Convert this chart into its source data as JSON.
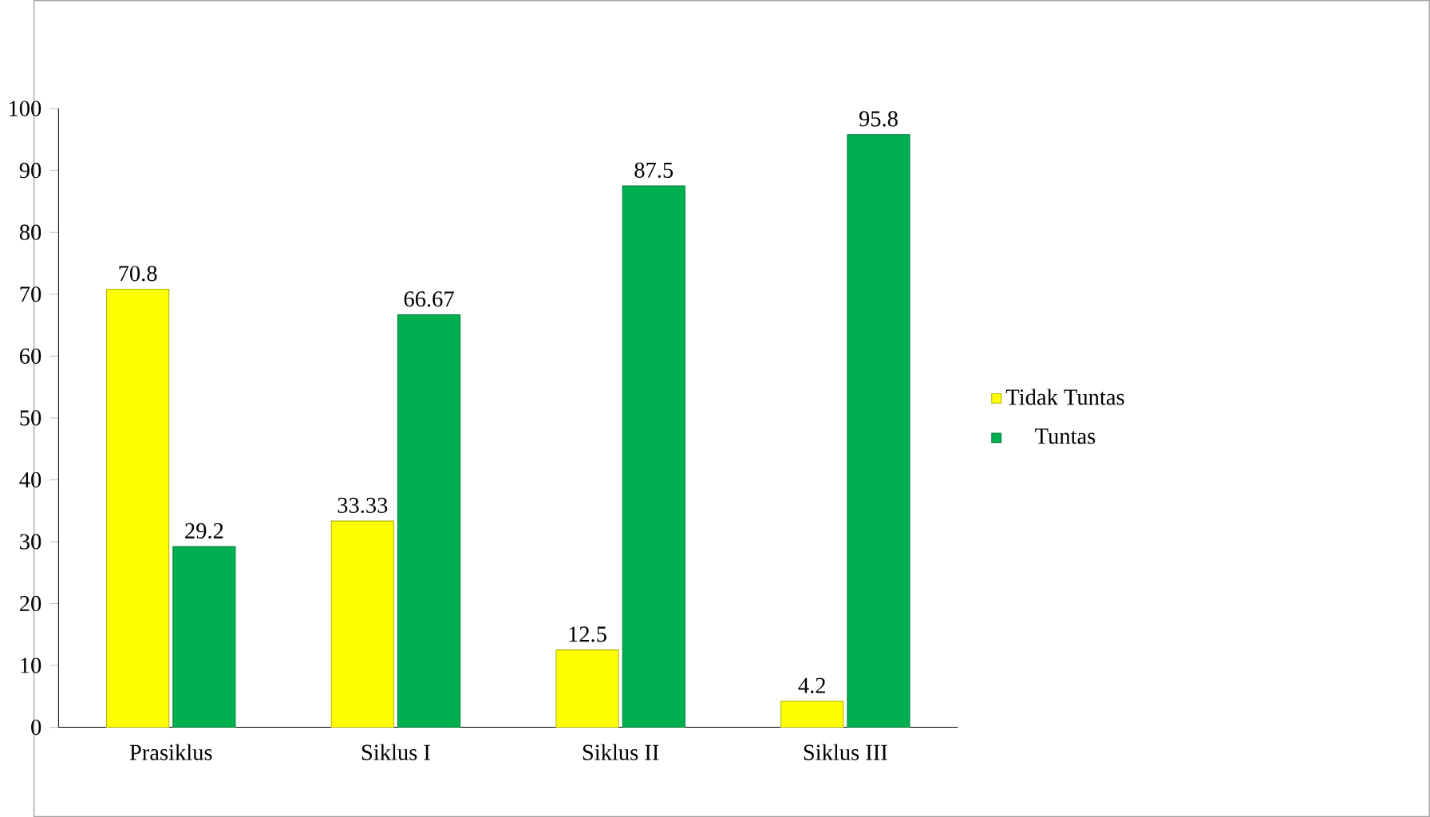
{
  "chart_data": {
    "type": "bar",
    "categories": [
      "Prasiklus",
      "Siklus I",
      "Siklus II",
      "Siklus III"
    ],
    "series": [
      {
        "name": "Tidak Tuntas",
        "color": "#ffff00",
        "values": [
          70.8,
          33.33,
          12.5,
          4.2
        ]
      },
      {
        "name": "Tuntas",
        "color": "#00b050",
        "values": [
          29.2,
          66.67,
          87.5,
          95.8
        ]
      }
    ],
    "ylim": [
      0,
      100
    ],
    "yticks": [
      0,
      10,
      20,
      30,
      40,
      50,
      60,
      70,
      80,
      90,
      100
    ],
    "data_labels": true,
    "legend": "right",
    "grid": false
  }
}
